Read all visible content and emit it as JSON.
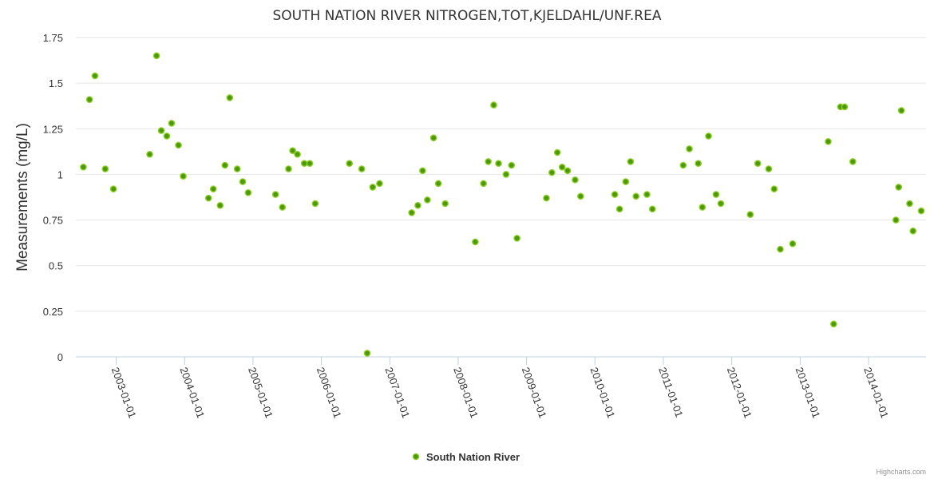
{
  "chart_data": {
    "type": "scatter",
    "title": "SOUTH NATION RIVER NITROGEN,TOT,KJELDAHL/UNF.REA",
    "xlabel": "",
    "ylabel": "Measurements (mg/L)",
    "ylim": [
      0,
      1.75
    ],
    "yticks": [
      0,
      0.25,
      0.5,
      0.75,
      1,
      1.25,
      1.5,
      1.75
    ],
    "ytick_labels": [
      "0",
      "0.25",
      "0.5",
      "0.75",
      "1",
      "1.25",
      "1.5",
      "1.75"
    ],
    "xlim": [
      2002.41,
      2014.84
    ],
    "xtick_labels": [
      "2003-01-01",
      "2004-01-01",
      "2005-01-01",
      "2006-01-01",
      "2007-01-01",
      "2008-01-01",
      "2009-01-01",
      "2010-01-01",
      "2011-01-01",
      "2012-01-01",
      "2013-01-01",
      "2014-01-01"
    ],
    "xtick_values": [
      2003,
      2004,
      2005,
      2006,
      2007,
      2008,
      2009,
      2010,
      2011,
      2012,
      2013,
      2014
    ],
    "grid": true,
    "legend_position": "bottom-center",
    "series": [
      {
        "name": "South Nation River",
        "color": "#4e9a06",
        "points": [
          [
            2002.52,
            1.04
          ],
          [
            2002.61,
            1.41
          ],
          [
            2002.69,
            1.54
          ],
          [
            2002.84,
            1.03
          ],
          [
            2002.96,
            0.92
          ],
          [
            2003.49,
            1.11
          ],
          [
            2003.59,
            1.65
          ],
          [
            2003.66,
            1.24
          ],
          [
            2003.74,
            1.21
          ],
          [
            2003.81,
            1.28
          ],
          [
            2003.91,
            1.16
          ],
          [
            2003.98,
            0.99
          ],
          [
            2004.35,
            0.87
          ],
          [
            2004.42,
            0.92
          ],
          [
            2004.52,
            0.83
          ],
          [
            2004.59,
            1.05
          ],
          [
            2004.66,
            1.42
          ],
          [
            2004.77,
            1.03
          ],
          [
            2004.85,
            0.96
          ],
          [
            2004.93,
            0.9
          ],
          [
            2005.33,
            0.89
          ],
          [
            2005.43,
            0.82
          ],
          [
            2005.52,
            1.03
          ],
          [
            2005.58,
            1.13
          ],
          [
            2005.65,
            1.11
          ],
          [
            2005.75,
            1.06
          ],
          [
            2005.83,
            1.06
          ],
          [
            2005.91,
            0.84
          ],
          [
            2006.41,
            1.06
          ],
          [
            2006.59,
            1.03
          ],
          [
            2006.67,
            0.02
          ],
          [
            2006.75,
            0.93
          ],
          [
            2006.85,
            0.95
          ],
          [
            2007.32,
            0.79
          ],
          [
            2007.41,
            0.83
          ],
          [
            2007.48,
            1.02
          ],
          [
            2007.55,
            0.86
          ],
          [
            2007.64,
            1.2
          ],
          [
            2007.71,
            0.95
          ],
          [
            2007.81,
            0.84
          ],
          [
            2008.25,
            0.63
          ],
          [
            2008.37,
            0.95
          ],
          [
            2008.44,
            1.07
          ],
          [
            2008.52,
            1.38
          ],
          [
            2008.59,
            1.06
          ],
          [
            2008.7,
            1.0
          ],
          [
            2008.78,
            1.05
          ],
          [
            2008.86,
            0.65
          ],
          [
            2009.29,
            0.87
          ],
          [
            2009.37,
            1.01
          ],
          [
            2009.45,
            1.12
          ],
          [
            2009.52,
            1.04
          ],
          [
            2009.6,
            1.02
          ],
          [
            2009.71,
            0.97
          ],
          [
            2009.79,
            0.88
          ],
          [
            2010.29,
            0.89
          ],
          [
            2010.36,
            0.81
          ],
          [
            2010.45,
            0.96
          ],
          [
            2010.52,
            1.07
          ],
          [
            2010.6,
            0.88
          ],
          [
            2010.76,
            0.89
          ],
          [
            2010.84,
            0.81
          ],
          [
            2011.29,
            1.05
          ],
          [
            2011.38,
            1.14
          ],
          [
            2011.51,
            1.06
          ],
          [
            2011.57,
            0.82
          ],
          [
            2011.66,
            1.21
          ],
          [
            2011.77,
            0.89
          ],
          [
            2011.84,
            0.84
          ],
          [
            2012.27,
            0.78
          ],
          [
            2012.38,
            1.06
          ],
          [
            2012.54,
            1.03
          ],
          [
            2012.62,
            0.92
          ],
          [
            2012.71,
            0.59
          ],
          [
            2012.89,
            0.62
          ],
          [
            2013.41,
            1.18
          ],
          [
            2013.49,
            0.18
          ],
          [
            2013.59,
            1.37
          ],
          [
            2013.65,
            1.37
          ],
          [
            2013.77,
            1.07
          ],
          [
            2014.4,
            0.75
          ],
          [
            2014.44,
            0.93
          ],
          [
            2014.48,
            1.35
          ],
          [
            2014.6,
            0.84
          ],
          [
            2014.65,
            0.69
          ],
          [
            2014.77,
            0.8
          ]
        ]
      }
    ]
  },
  "legend": {
    "label": "South Nation River"
  },
  "credits": "Highcharts.com"
}
